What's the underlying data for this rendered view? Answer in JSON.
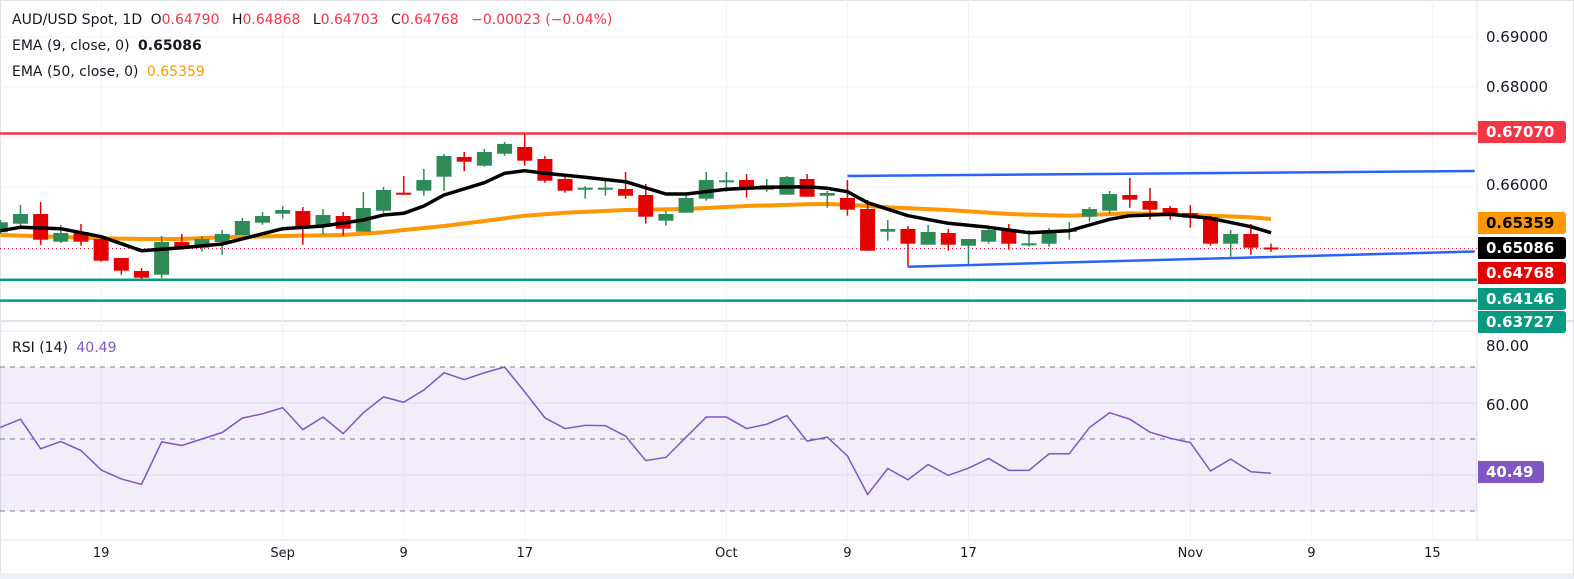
{
  "header": {
    "symbol": "AUD/USD Spot, 1D",
    "o_label": "O",
    "o": "0.64790",
    "h_label": "H",
    "h": "0.64868",
    "l_label": "L",
    "l": "0.64703",
    "c_label": "C",
    "c": "0.64768",
    "change": "−0.00023 (−0.04%)"
  },
  "indicators": {
    "ema9": {
      "label": "EMA (9, close, 0)",
      "value": "0.65086",
      "color": "#000000"
    },
    "ema50": {
      "label": "EMA (50, close, 0)",
      "value": "0.65359",
      "color": "#ff9800"
    },
    "rsi": {
      "label": "RSI (14)",
      "value": "40.49",
      "color": "#7e57c2"
    }
  },
  "price_axis": {
    "ticks": [
      "0.69000",
      "0.68000",
      "0.66000"
    ],
    "tags": [
      {
        "value": "0.67070",
        "bg": "#f23645",
        "fg": "#ffffff"
      },
      {
        "value": "0.65359",
        "bg": "#ff9800",
        "fg": "#000000"
      },
      {
        "value": "0.65086",
        "bg": "#000000",
        "fg": "#ffffff"
      },
      {
        "value": "0.64768",
        "bg": "#e50000",
        "fg": "#ffffff"
      },
      {
        "value": "0.64146",
        "bg": "#089981",
        "fg": "#ffffff"
      },
      {
        "value": "0.63727",
        "bg": "#089981",
        "fg": "#ffffff"
      }
    ]
  },
  "rsi_axis": {
    "ticks": [
      "80.00",
      "60.00"
    ],
    "tag": "40.49"
  },
  "x_axis": {
    "ticks": [
      {
        "label": "19",
        "bar": 5
      },
      {
        "label": "Sep",
        "bar": 14
      },
      {
        "label": "9",
        "bar": 20
      },
      {
        "label": "17",
        "bar": 26
      },
      {
        "label": "Oct",
        "bar": 36
      },
      {
        "label": "9",
        "bar": 42
      },
      {
        "label": "17",
        "bar": 48
      },
      {
        "label": "Nov",
        "bar": 59
      },
      {
        "label": "9",
        "bar": 65
      },
      {
        "label": "15",
        "bar": 71
      }
    ]
  },
  "chart_data": {
    "type": "candlestick",
    "ylim": [
      0.632,
      0.694
    ],
    "up_color": "#2e8b57",
    "down_color": "#e50000",
    "candles_ohlc": [
      [
        0.65094,
        0.6534,
        0.6506,
        0.65294
      ],
      [
        0.65266,
        0.6564,
        0.65186,
        0.6546
      ],
      [
        0.6546,
        0.657,
        0.6484,
        0.64946
      ],
      [
        0.64906,
        0.6524,
        0.6488,
        0.6508
      ],
      [
        0.651,
        0.6526,
        0.64826,
        0.64906
      ],
      [
        0.6496,
        0.64994,
        0.64506,
        0.64526
      ],
      [
        0.6458,
        0.6458,
        0.64246,
        0.64326
      ],
      [
        0.6432,
        0.6438,
        0.6416,
        0.64186
      ],
      [
        0.64246,
        0.6502,
        0.6418,
        0.649
      ],
      [
        0.649,
        0.6506,
        0.64746,
        0.64786
      ],
      [
        0.64786,
        0.65014,
        0.64706,
        0.6496
      ],
      [
        0.649,
        0.6514,
        0.64646,
        0.6506
      ],
      [
        0.6504,
        0.6538,
        0.6504,
        0.6532
      ],
      [
        0.65286,
        0.655,
        0.65246,
        0.6542
      ],
      [
        0.65466,
        0.6562,
        0.65366,
        0.6554
      ],
      [
        0.6552,
        0.656,
        0.64846,
        0.65186
      ],
      [
        0.652,
        0.6556,
        0.65046,
        0.6544
      ],
      [
        0.6542,
        0.655,
        0.65026,
        0.65166
      ],
      [
        0.65106,
        0.659,
        0.65106,
        0.6558
      ],
      [
        0.65526,
        0.66,
        0.65486,
        0.6594
      ],
      [
        0.65886,
        0.6622,
        0.65846,
        0.65846
      ],
      [
        0.65926,
        0.6636,
        0.65826,
        0.6614
      ],
      [
        0.66206,
        0.6666,
        0.6592,
        0.6662
      ],
      [
        0.666,
        0.667,
        0.6632,
        0.66506
      ],
      [
        0.66426,
        0.6676,
        0.66406,
        0.667
      ],
      [
        0.66666,
        0.669,
        0.66626,
        0.6686
      ],
      [
        0.668,
        0.67074,
        0.66426,
        0.66526
      ],
      [
        0.6656,
        0.6662,
        0.66086,
        0.66126
      ],
      [
        0.6616,
        0.6622,
        0.65886,
        0.65926
      ],
      [
        0.65974,
        0.6602,
        0.65766,
        0.65986
      ],
      [
        0.6598,
        0.6616,
        0.65826,
        0.65986
      ],
      [
        0.6596,
        0.663,
        0.65766,
        0.65826
      ],
      [
        0.6584,
        0.6606,
        0.65266,
        0.65406
      ],
      [
        0.65326,
        0.65526,
        0.65226,
        0.6546
      ],
      [
        0.65486,
        0.6582,
        0.65486,
        0.6578
      ],
      [
        0.65766,
        0.663,
        0.65726,
        0.6614
      ],
      [
        0.66126,
        0.663,
        0.65906,
        0.66134
      ],
      [
        0.6614,
        0.6626,
        0.65786,
        0.65966
      ],
      [
        0.65946,
        0.6616,
        0.65906,
        0.66034
      ],
      [
        0.65846,
        0.6622,
        0.65846,
        0.662
      ],
      [
        0.6616,
        0.6626,
        0.65806,
        0.65806
      ],
      [
        0.65826,
        0.6592,
        0.65586,
        0.6588
      ],
      [
        0.6578,
        0.6614,
        0.65426,
        0.65546
      ],
      [
        0.6556,
        0.6574,
        0.64726,
        0.64726
      ],
      [
        0.65106,
        0.6534,
        0.64926,
        0.6516
      ],
      [
        0.6516,
        0.6522,
        0.64406,
        0.64866
      ],
      [
        0.64846,
        0.6524,
        0.64846,
        0.651
      ],
      [
        0.6508,
        0.6516,
        0.64726,
        0.64846
      ],
      [
        0.64826,
        0.6496,
        0.64446,
        0.6496
      ],
      [
        0.64906,
        0.6522,
        0.64866,
        0.6514
      ],
      [
        0.6516,
        0.6526,
        0.64746,
        0.64866
      ],
      [
        0.64866,
        0.6514,
        0.64806,
        0.64874
      ],
      [
        0.64866,
        0.6518,
        0.64806,
        0.6514
      ],
      [
        0.651,
        0.653,
        0.64946,
        0.6514
      ],
      [
        0.65406,
        0.656,
        0.65306,
        0.6556
      ],
      [
        0.65526,
        0.6592,
        0.65466,
        0.6586
      ],
      [
        0.6584,
        0.6618,
        0.65586,
        0.65746
      ],
      [
        0.6572,
        0.6598,
        0.65346,
        0.65546
      ],
      [
        0.6558,
        0.6562,
        0.65346,
        0.65446
      ],
      [
        0.6548,
        0.6564,
        0.65186,
        0.65386
      ],
      [
        0.654,
        0.65426,
        0.64826,
        0.64866
      ],
      [
        0.64866,
        0.6514,
        0.64606,
        0.6506
      ],
      [
        0.6506,
        0.6526,
        0.64646,
        0.64786
      ],
      [
        0.6479,
        0.64868,
        0.64703,
        0.64768
      ]
    ],
    "ema9": [
      [
        0,
        0.65126
      ],
      [
        1,
        0.65194
      ],
      [
        3,
        0.65166
      ],
      [
        5,
        0.65006
      ],
      [
        7,
        0.64726
      ],
      [
        9,
        0.64786
      ],
      [
        11,
        0.6486
      ],
      [
        14,
        0.65166
      ],
      [
        16,
        0.6522
      ],
      [
        18,
        0.6534
      ],
      [
        19,
        0.6544
      ],
      [
        20,
        0.65474
      ],
      [
        21,
        0.6562
      ],
      [
        22,
        0.6584
      ],
      [
        24,
        0.66086
      ],
      [
        25,
        0.66274
      ],
      [
        26,
        0.66326
      ],
      [
        27,
        0.66274
      ],
      [
        29,
        0.66194
      ],
      [
        31,
        0.66106
      ],
      [
        33,
        0.6586
      ],
      [
        34,
        0.6586
      ],
      [
        36,
        0.65954
      ],
      [
        38,
        0.65994
      ],
      [
        40,
        0.66006
      ],
      [
        41,
        0.65974
      ],
      [
        42,
        0.65906
      ],
      [
        43,
        0.65686
      ],
      [
        45,
        0.65426
      ],
      [
        47,
        0.65274
      ],
      [
        49,
        0.65194
      ],
      [
        51,
        0.65086
      ],
      [
        53,
        0.65126
      ],
      [
        54,
        0.6524
      ],
      [
        55,
        0.65354
      ],
      [
        56,
        0.65426
      ],
      [
        58,
        0.65454
      ],
      [
        60,
        0.65374
      ],
      [
        62,
        0.65206
      ],
      [
        63,
        0.65086
      ]
    ],
    "ema50": [
      [
        0,
        0.6504
      ],
      [
        5,
        0.64974
      ],
      [
        7,
        0.6496
      ],
      [
        9,
        0.6496
      ],
      [
        11,
        0.64994
      ],
      [
        14,
        0.6502
      ],
      [
        17,
        0.6504
      ],
      [
        19,
        0.65094
      ],
      [
        20,
        0.6514
      ],
      [
        22,
        0.6522
      ],
      [
        24,
        0.6532
      ],
      [
        26,
        0.65426
      ],
      [
        28,
        0.65486
      ],
      [
        31,
        0.6554
      ],
      [
        34,
        0.6556
      ],
      [
        37,
        0.6562
      ],
      [
        40,
        0.65654
      ],
      [
        41,
        0.6566
      ],
      [
        42,
        0.65646
      ],
      [
        44,
        0.65594
      ],
      [
        47,
        0.6554
      ],
      [
        50,
        0.6546
      ],
      [
        53,
        0.65426
      ],
      [
        56,
        0.65474
      ],
      [
        59,
        0.6544
      ],
      [
        62,
        0.65394
      ],
      [
        63,
        0.65359
      ]
    ],
    "horizontal_levels": [
      {
        "price": 0.6707,
        "color": "#f23645"
      },
      {
        "price": 0.64146,
        "color": "#089981"
      },
      {
        "price": 0.63727,
        "color": "#089981"
      }
    ],
    "last_price": 0.64768,
    "channel_color": "#2962ff",
    "channel_upper": [
      [
        42,
        0.6622
      ],
      [
        73.1,
        0.6632
      ]
    ],
    "channel_lower": [
      [
        45,
        0.64406
      ],
      [
        73.1,
        0.6471
      ]
    ],
    "rsi": {
      "ylim": [
        20,
        85
      ],
      "levels": [
        70,
        50,
        30
      ],
      "values": [
        53.2,
        55.5,
        47.3,
        49.3,
        46.8,
        41.4,
        38.9,
        37.4,
        49.2,
        48.2,
        50.0,
        51.8,
        55.8,
        57.0,
        58.7,
        52.6,
        56.1,
        51.5,
        57.3,
        61.7,
        60.2,
        63.6,
        68.4,
        66.5,
        68.4,
        70.0,
        63.1,
        55.9,
        52.9,
        53.8,
        53.7,
        50.8,
        44.0,
        44.9,
        50.5,
        56.1,
        56.1,
        52.9,
        54.1,
        56.5,
        49.4,
        50.5,
        45.3,
        34.6,
        41.8,
        38.7,
        42.9,
        39.9,
        41.9,
        44.6,
        41.3,
        41.3,
        45.9,
        45.9,
        53.2,
        57.3,
        55.5,
        51.9,
        50.2,
        49.0,
        41.1,
        44.4,
        40.9,
        40.49
      ]
    }
  }
}
